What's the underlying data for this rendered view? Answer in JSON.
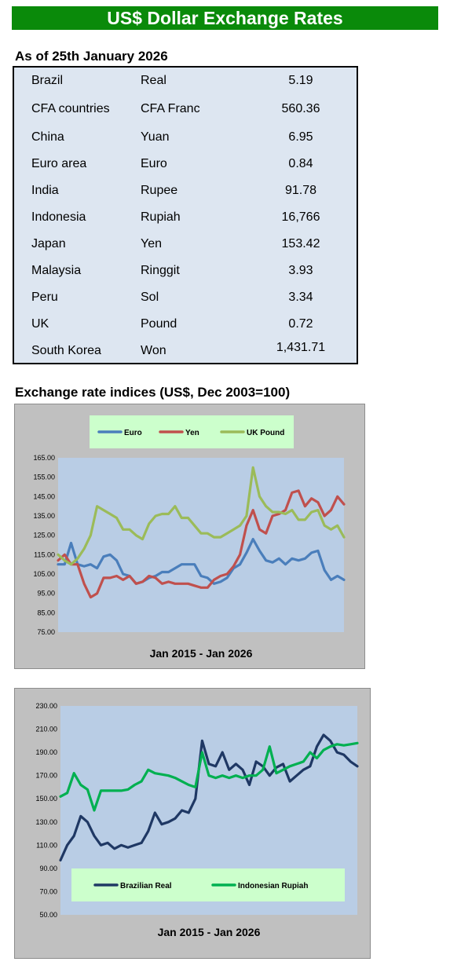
{
  "header": {
    "title": "US$ Dollar Exchange Rates"
  },
  "rates_table": {
    "as_of": "As of 25th January 2026",
    "rows": [
      {
        "country": "Brazil",
        "currency": "Real",
        "value": "5.19"
      },
      {
        "country": "CFA countries",
        "currency": "CFA Franc",
        "value": "560.36"
      },
      {
        "country": "China",
        "currency": "Yuan",
        "value": "6.95"
      },
      {
        "country": "Euro area",
        "currency": "Euro",
        "value": "0.84"
      },
      {
        "country": "India",
        "currency": "Rupee",
        "value": "91.78"
      },
      {
        "country": "Indonesia",
        "currency": "Rupiah",
        "value": "16,766"
      },
      {
        "country": "Japan",
        "currency": "Yen",
        "value": "153.42"
      },
      {
        "country": "Malaysia",
        "currency": "Ringgit",
        "value": "3.93"
      },
      {
        "country": "Peru",
        "currency": "Sol",
        "value": "3.34"
      },
      {
        "country": "UK",
        "currency": "Pound",
        "value": "0.72"
      },
      {
        "country": "South Korea",
        "currency": "Won",
        "value": "1,431.71"
      }
    ]
  },
  "indices_section": {
    "title": "Exchange rate indices (US$, Dec 2003=100)"
  },
  "chart_data": [
    {
      "type": "line",
      "xlabel": "Jan 2015 - Jan 2026",
      "ylabel": "",
      "ylim": [
        75,
        165
      ],
      "yticks": [
        "165.00",
        "155.00",
        "145.00",
        "135.00",
        "125.00",
        "115.00",
        "105.00",
        "95.00",
        "85.00",
        "75.00"
      ],
      "x_range": [
        "Jan 2015",
        "Jan 2026"
      ],
      "legend_position": "top",
      "grid": false,
      "series": [
        {
          "name": "Euro",
          "color": "#4a7ebb",
          "x": [
            2015.0,
            2015.25,
            2015.5,
            2015.75,
            2016.0,
            2016.25,
            2016.5,
            2016.75,
            2017.0,
            2017.25,
            2017.5,
            2017.75,
            2018.0,
            2018.25,
            2018.5,
            2018.75,
            2019.0,
            2019.25,
            2019.5,
            2019.75,
            2020.0,
            2020.25,
            2020.5,
            2020.75,
            2021.0,
            2021.25,
            2021.5,
            2021.75,
            2022.0,
            2022.25,
            2022.5,
            2022.75,
            2023.0,
            2023.25,
            2023.5,
            2023.75,
            2024.0,
            2024.25,
            2024.5,
            2024.75,
            2025.0,
            2025.25,
            2025.5,
            2025.75,
            2026.0
          ],
          "values": [
            110,
            110,
            121,
            110,
            109,
            110,
            108,
            114,
            115,
            112,
            105,
            104,
            100,
            101,
            103,
            104,
            106,
            106,
            108,
            110,
            110,
            110,
            104,
            103,
            100,
            101,
            103,
            108,
            110,
            116,
            123,
            117,
            112,
            111,
            113,
            110,
            113,
            112,
            113,
            116,
            117,
            107,
            102,
            104,
            102
          ]
        },
        {
          "name": "Yen",
          "color": "#c0504d",
          "x": [
            2015.0,
            2015.25,
            2015.5,
            2015.75,
            2016.0,
            2016.25,
            2016.5,
            2016.75,
            2017.0,
            2017.25,
            2017.5,
            2017.75,
            2018.0,
            2018.25,
            2018.5,
            2018.75,
            2019.0,
            2019.25,
            2019.5,
            2019.75,
            2020.0,
            2020.25,
            2020.5,
            2020.75,
            2021.0,
            2021.25,
            2021.5,
            2021.75,
            2022.0,
            2022.25,
            2022.5,
            2022.75,
            2023.0,
            2023.25,
            2023.5,
            2023.75,
            2024.0,
            2024.25,
            2024.5,
            2024.75,
            2025.0,
            2025.25,
            2025.5,
            2025.75,
            2026.0
          ],
          "values": [
            112,
            115,
            110,
            110,
            100,
            93,
            95,
            103,
            103,
            104,
            102,
            104,
            100,
            101,
            104,
            103,
            100,
            101,
            100,
            100,
            100,
            99,
            98,
            98,
            102,
            104,
            105,
            109,
            115,
            130,
            138,
            128,
            126,
            135,
            136,
            138,
            147,
            148,
            140,
            144,
            142,
            135,
            138,
            145,
            141
          ]
        },
        {
          "name": "UK Pound",
          "color": "#9bbb59",
          "x": [
            2015.0,
            2015.25,
            2015.5,
            2015.75,
            2016.0,
            2016.25,
            2016.5,
            2016.75,
            2017.0,
            2017.25,
            2017.5,
            2017.75,
            2018.0,
            2018.25,
            2018.5,
            2018.75,
            2019.0,
            2019.25,
            2019.5,
            2019.75,
            2020.0,
            2020.25,
            2020.5,
            2020.75,
            2021.0,
            2021.25,
            2021.5,
            2021.75,
            2022.0,
            2022.25,
            2022.5,
            2022.75,
            2023.0,
            2023.25,
            2023.5,
            2023.75,
            2024.0,
            2024.25,
            2024.5,
            2024.75,
            2025.0,
            2025.25,
            2025.5,
            2025.75,
            2026.0
          ],
          "values": [
            115,
            112,
            110,
            113,
            118,
            125,
            140,
            138,
            136,
            134,
            128,
            128,
            125,
            123,
            131,
            135,
            136,
            136,
            140,
            134,
            134,
            130,
            126,
            126,
            124,
            124,
            126,
            128,
            130,
            135,
            160,
            145,
            140,
            137,
            137,
            136,
            138,
            133,
            133,
            137,
            138,
            130,
            128,
            130,
            124
          ]
        }
      ]
    },
    {
      "type": "line",
      "xlabel": "Jan 2015 - Jan 2026",
      "ylabel": "",
      "ylim": [
        50,
        230
      ],
      "yticks": [
        "230.00",
        "210.00",
        "190.00",
        "170.00",
        "150.00",
        "130.00",
        "110.00",
        "90.00",
        "70.00",
        "50.00"
      ],
      "x_range": [
        "Jan 2015",
        "Jan 2026"
      ],
      "legend_position": "bottom",
      "grid": false,
      "series": [
        {
          "name": "Brazilian Real",
          "color": "#1f3864",
          "x": [
            2015.0,
            2015.25,
            2015.5,
            2015.75,
            2016.0,
            2016.25,
            2016.5,
            2016.75,
            2017.0,
            2017.25,
            2017.5,
            2017.75,
            2018.0,
            2018.25,
            2018.5,
            2018.75,
            2019.0,
            2019.25,
            2019.5,
            2019.75,
            2020.0,
            2020.25,
            2020.5,
            2020.75,
            2021.0,
            2021.25,
            2021.5,
            2021.75,
            2022.0,
            2022.25,
            2022.5,
            2022.75,
            2023.0,
            2023.25,
            2023.5,
            2023.75,
            2024.0,
            2024.25,
            2024.5,
            2024.75,
            2025.0,
            2025.25,
            2025.5,
            2025.75,
            2026.0
          ],
          "values": [
            97,
            110,
            118,
            135,
            130,
            118,
            110,
            112,
            107,
            110,
            108,
            110,
            112,
            122,
            138,
            128,
            130,
            133,
            140,
            138,
            150,
            200,
            180,
            178,
            190,
            175,
            180,
            175,
            162,
            182,
            178,
            170,
            177,
            180,
            165,
            170,
            175,
            178,
            195,
            205,
            200,
            190,
            188,
            182,
            178
          ]
        },
        {
          "name": "Indonesian Rupiah",
          "color": "#00b050",
          "x": [
            2015.0,
            2015.25,
            2015.5,
            2015.75,
            2016.0,
            2016.25,
            2016.5,
            2016.75,
            2017.0,
            2017.25,
            2017.5,
            2017.75,
            2018.0,
            2018.25,
            2018.5,
            2018.75,
            2019.0,
            2019.25,
            2019.5,
            2019.75,
            2020.0,
            2020.25,
            2020.5,
            2020.75,
            2021.0,
            2021.25,
            2021.5,
            2021.75,
            2022.0,
            2022.25,
            2022.5,
            2022.75,
            2023.0,
            2023.25,
            2023.5,
            2023.75,
            2024.0,
            2024.25,
            2024.5,
            2024.75,
            2025.0,
            2025.25,
            2025.5,
            2025.75,
            2026.0
          ],
          "values": [
            152,
            155,
            172,
            162,
            158,
            140,
            157,
            157,
            157,
            157,
            158,
            162,
            165,
            175,
            172,
            171,
            170,
            168,
            165,
            162,
            160,
            190,
            170,
            168,
            170,
            168,
            170,
            168,
            170,
            170,
            175,
            195,
            172,
            175,
            178,
            180,
            182,
            190,
            185,
            192,
            195,
            197,
            196,
            197,
            198
          ]
        }
      ]
    }
  ]
}
